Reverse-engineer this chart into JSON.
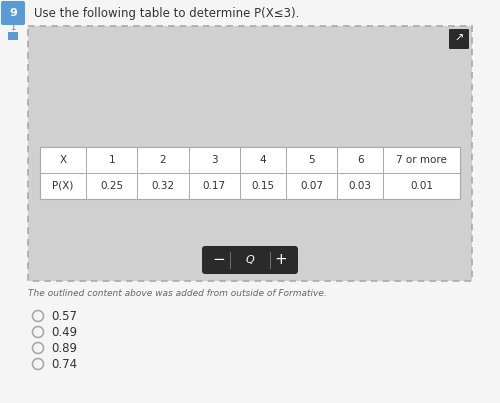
{
  "question_number": "9",
  "question_text": "Use the following table to determine P(X≤3).",
  "table_headers": [
    "X",
    "1",
    "2",
    "3",
    "4",
    "5",
    "6",
    "7 or more"
  ],
  "table_row_label": "P(X)",
  "table_values": [
    "0.25",
    "0.32",
    "0.17",
    "0.15",
    "0.07",
    "0.03",
    "0.01"
  ],
  "answer_choices": [
    "0.57",
    "0.49",
    "0.89",
    "0.74"
  ],
  "footnote": "The outlined content above was added from outside of Formative.",
  "bg_color": "#d0d0d0",
  "outer_border_color": "#aaaaaa",
  "table_bg": "#ffffff",
  "page_bg": "#f5f5f5",
  "question_num_bg": "#5b9bd5",
  "question_num_text": "#ffffff",
  "toolbar_bg": "#2a2a2a",
  "toolbar_text": "#ffffff",
  "icon_bg": "#2a2a2a",
  "text_color": "#333333",
  "footnote_color": "#666666"
}
